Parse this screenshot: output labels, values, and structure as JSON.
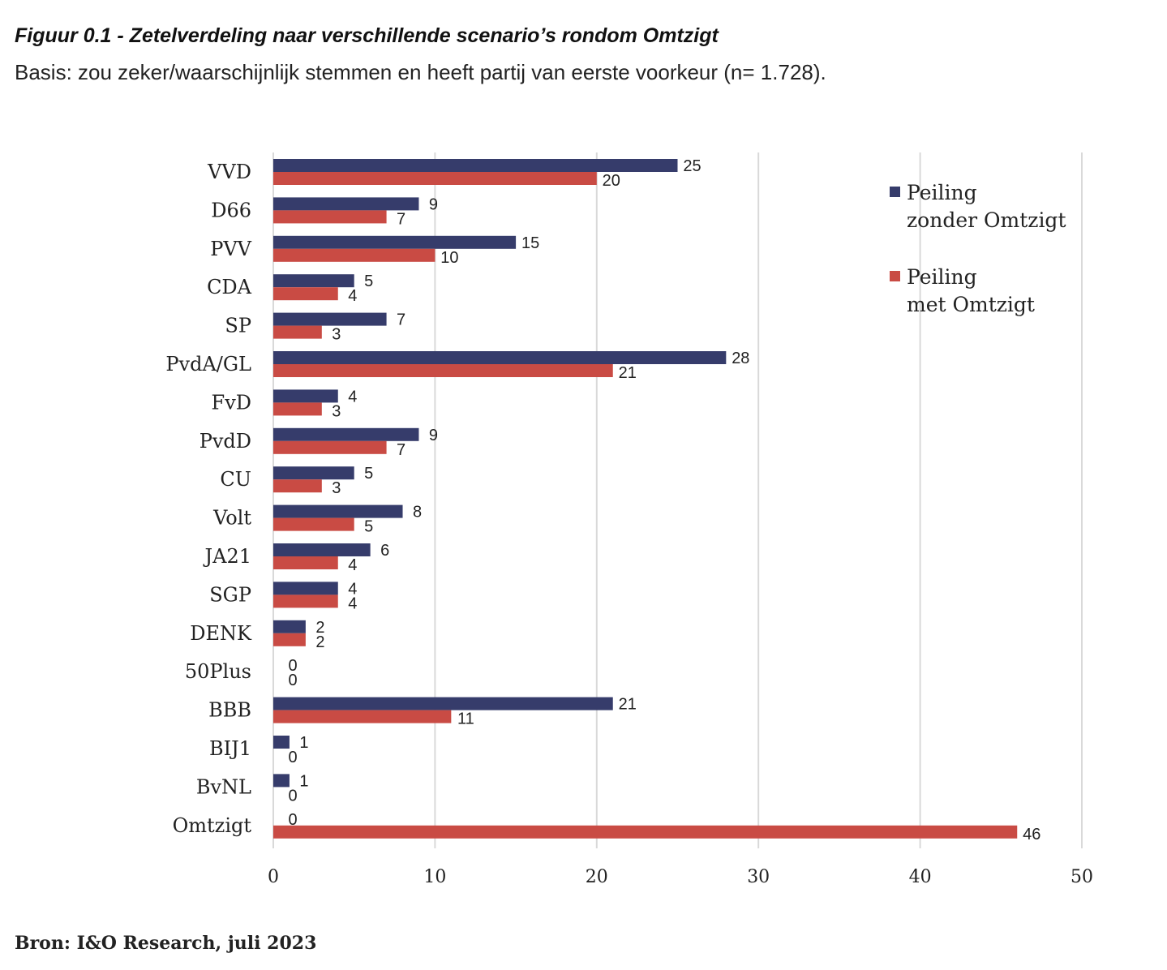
{
  "title": "Figuur 0.1 - Zetelverdeling naar verschillende scenario’s rondom Omtzigt",
  "subtitle": "Basis: zou zeker/waarschijnlijk stemmen en heeft partij van eerste voorkeur (n= 1.728).",
  "source": "Bron: I&O Research, juli 2023",
  "chart_data": {
    "type": "bar",
    "orientation": "horizontal",
    "categories": [
      "VVD",
      "D66",
      "PVV",
      "CDA",
      "SP",
      "PvdA/GL",
      "FvD",
      "PvdD",
      "CU",
      "Volt",
      "JA21",
      "SGP",
      "DENK",
      "50Plus",
      "BBB",
      "BIJ1",
      "BvNL",
      "Omtzigt"
    ],
    "series": [
      {
        "legend_lines": [
          "Peiling",
          "zonder Omtzigt"
        ],
        "color": "#363c6b",
        "values": [
          25,
          9,
          15,
          5,
          7,
          28,
          4,
          9,
          5,
          8,
          6,
          4,
          2,
          0,
          21,
          1,
          1,
          0
        ]
      },
      {
        "legend_lines": [
          "Peiling",
          "met Omtzigt"
        ],
        "color": "#c94b44",
        "values": [
          20,
          7,
          10,
          4,
          3,
          21,
          3,
          7,
          3,
          5,
          4,
          4,
          2,
          0,
          11,
          0,
          0,
          46
        ]
      }
    ],
    "xlim": [
      0,
      50
    ],
    "xticks": [
      0,
      10,
      20,
      30,
      40,
      50
    ],
    "grid": true,
    "legend_position": "top-right"
  }
}
